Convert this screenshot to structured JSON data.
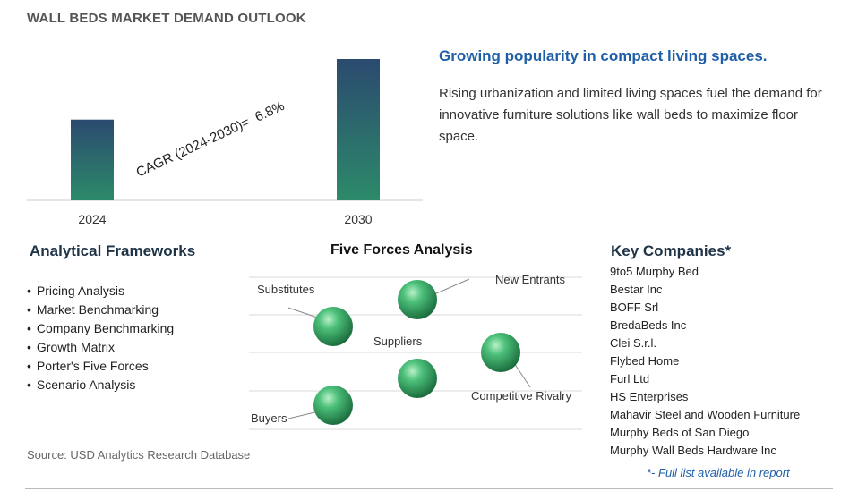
{
  "title": "WALL BEDS MARKET DEMAND OUTLOOK",
  "chart_data": {
    "type": "bar",
    "categories": [
      "2024",
      "2030"
    ],
    "values": [
      1.0,
      1.75
    ],
    "annotation": "CAGR (2024-2030)=  6.8%",
    "colors": {
      "bar_top": "#2b4a6f",
      "bar_bottom": "#2c8a6a"
    }
  },
  "headline": "Growing popularity in compact living spaces.",
  "description": "Rising urbanization and limited living spaces fuel the demand for innovative furniture solutions like wall beds to maximize floor space.",
  "analytical_frameworks": {
    "title": "Analytical Frameworks",
    "items": [
      "Pricing Analysis",
      "Market Benchmarking",
      "Company Benchmarking",
      "Growth Matrix",
      "Porter's Five Forces",
      "Scenario Analysis"
    ]
  },
  "five_forces": {
    "title": "Five Forces Analysis",
    "forces": [
      "Substitutes",
      "New Entrants",
      "Suppliers",
      "Competitive Rivalry",
      "Buyers"
    ]
  },
  "key_companies": {
    "title": "Key Companies*",
    "items": [
      "9to5 Murphy Bed",
      "Bestar Inc",
      "BOFF Srl",
      "BredaBeds Inc",
      "Clei S.r.l.",
      "Flybed Home",
      "Furl Ltd",
      "HS Enterprises",
      "Mahavir Steel and Wooden Furniture",
      "Murphy Beds of San Diego",
      "Murphy Wall Beds Hardware Inc"
    ],
    "note": "*- Full list available in report"
  },
  "source": "Source: USD Analytics Research Database",
  "colors": {
    "accent": "#1f5fa8",
    "sphere": "#2e9e5e"
  }
}
